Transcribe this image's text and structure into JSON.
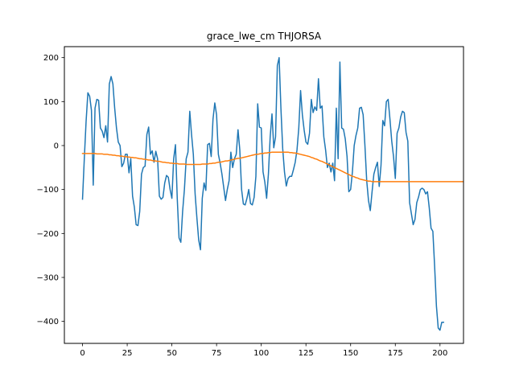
{
  "chart_data": {
    "type": "line",
    "title": "grace_lwe_cm THJORSA",
    "xlabel": "",
    "ylabel": "",
    "xlim": [
      -10.15,
      213.15
    ],
    "ylim": [
      -450,
      225
    ],
    "x_ticks": [
      0,
      25,
      50,
      75,
      100,
      125,
      150,
      175,
      200
    ],
    "y_ticks": [
      -400,
      -300,
      -200,
      -100,
      0,
      100,
      200
    ],
    "x_tick_labels": [
      "0",
      "25",
      "50",
      "75",
      "100",
      "125",
      "150",
      "175",
      "200"
    ],
    "y_tick_labels": [
      "−400",
      "−300",
      "−200",
      "−100",
      "0",
      "100",
      "200"
    ],
    "grid": false,
    "legend": "none",
    "series": [
      {
        "color": "#1f77b4",
        "values": [
          -122,
          -30,
          55,
          120,
          112,
          80,
          -90,
          85,
          105,
          103,
          40,
          33,
          18,
          45,
          8,
          140,
          157,
          140,
          85,
          40,
          8,
          0,
          -48,
          -40,
          -20,
          -20,
          -62,
          -30,
          -115,
          -140,
          -180,
          -182,
          -150,
          -65,
          -50,
          -47,
          25,
          42,
          -20,
          -12,
          -38,
          -13,
          -30,
          -115,
          -122,
          -118,
          -85,
          -68,
          -72,
          -100,
          -120,
          -30,
          2,
          -120,
          -210,
          -220,
          -150,
          -100,
          -30,
          -15,
          78,
          25,
          -20,
          -110,
          -165,
          -215,
          -237,
          -120,
          -85,
          -102,
          2,
          5,
          -25,
          60,
          97,
          70,
          -20,
          -40,
          -65,
          -95,
          -125,
          -100,
          -80,
          -15,
          -50,
          -30,
          -20,
          36,
          -10,
          -100,
          -133,
          -135,
          -120,
          -100,
          -132,
          -135,
          -118,
          -70,
          95,
          42,
          40,
          -60,
          -83,
          -120,
          -65,
          20,
          72,
          -5,
          20,
          182,
          200,
          85,
          -7,
          -60,
          -92,
          -75,
          -70,
          -70,
          -55,
          -38,
          -10,
          40,
          125,
          70,
          35,
          8,
          3,
          28,
          105,
          75,
          88,
          80,
          152,
          85,
          90,
          20,
          -10,
          -50,
          -40,
          -60,
          -40,
          -80,
          85,
          -30,
          190,
          40,
          37,
          15,
          -25,
          -105,
          -100,
          -60,
          0,
          23,
          40,
          85,
          87,
          70,
          0,
          -80,
          -125,
          -148,
          -105,
          -65,
          -50,
          -38,
          -93,
          -45,
          57,
          45,
          100,
          105,
          60,
          10,
          -25,
          -75,
          28,
          40,
          65,
          78,
          75,
          30,
          10,
          -130,
          -155,
          -180,
          -168,
          -130,
          -117,
          -100,
          -97,
          -100,
          -110,
          -105,
          -142,
          -188,
          -195,
          -275,
          -365,
          -415,
          -420,
          -402,
          -402
        ]
      },
      {
        "color": "#ff7f0e",
        "values": [
          -18,
          -18,
          -18,
          -18,
          -18,
          -18,
          -18,
          -18,
          -19,
          -19,
          -19,
          -19,
          -20,
          -20,
          -20,
          -21,
          -21,
          -22,
          -22,
          -23,
          -23,
          -24,
          -24,
          -25,
          -25,
          -26,
          -26,
          -27,
          -27,
          -28,
          -28,
          -29,
          -30,
          -30,
          -31,
          -31,
          -32,
          -33,
          -33,
          -34,
          -35,
          -35,
          -36,
          -36,
          -37,
          -38,
          -38,
          -39,
          -39,
          -40,
          -40,
          -41,
          -41,
          -41,
          -42,
          -42,
          -42,
          -42,
          -43,
          -43,
          -43,
          -43,
          -43,
          -43,
          -43,
          -43,
          -43,
          -42,
          -42,
          -42,
          -42,
          -41,
          -41,
          -40,
          -40,
          -39,
          -38,
          -38,
          -37,
          -36,
          -35,
          -35,
          -34,
          -33,
          -32,
          -31,
          -30,
          -29,
          -29,
          -28,
          -27,
          -26,
          -25,
          -24,
          -23,
          -22,
          -21,
          -20,
          -20,
          -19,
          -18,
          -18,
          -17,
          -17,
          -16,
          -16,
          -15,
          -15,
          -15,
          -15,
          -15,
          -15,
          -15,
          -15,
          -15,
          -15,
          -16,
          -16,
          -17,
          -17,
          -18,
          -19,
          -20,
          -21,
          -22,
          -23,
          -24,
          -25,
          -27,
          -28,
          -30,
          -31,
          -33,
          -35,
          -36,
          -38,
          -40,
          -42,
          -44,
          -46,
          -48,
          -50,
          -52,
          -54,
          -56,
          -58,
          -60,
          -62,
          -64,
          -66,
          -68,
          -70,
          -71,
          -73,
          -74,
          -76,
          -77,
          -78,
          -79,
          -80,
          -81,
          -81,
          -82,
          -82,
          -82,
          -82,
          -82,
          -82,
          -82,
          -82,
          -82,
          -82,
          -82,
          -82,
          -82,
          -82,
          -82,
          -82,
          -82,
          -82,
          -82,
          -82,
          -82,
          -82,
          -82,
          -82,
          -82,
          -82,
          -82,
          -82,
          -82,
          -82,
          -82,
          -82,
          -82,
          -82,
          -82,
          -82,
          -82,
          -82,
          -82,
          -82,
          -82,
          -82,
          -82,
          -82,
          -82,
          -82,
          -82,
          -82,
          -82,
          -82,
          -82,
          -82
        ]
      }
    ]
  }
}
